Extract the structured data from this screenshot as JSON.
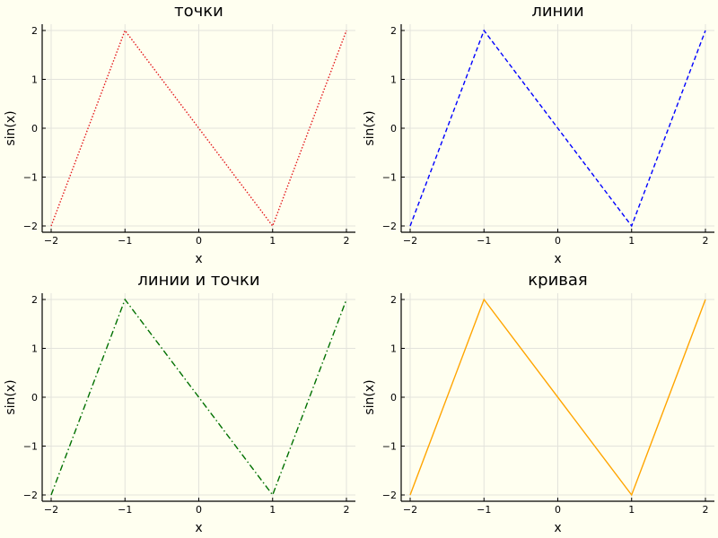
{
  "chart_data": [
    {
      "type": "line",
      "title": "точки",
      "xlabel": "x",
      "ylabel": "sin(x)",
      "xlim": [
        -2,
        2
      ],
      "ylim": [
        -2,
        2
      ],
      "xticks": [
        -2,
        -1,
        0,
        1,
        2
      ],
      "yticks": [
        -2,
        -1,
        0,
        1,
        2
      ],
      "xtick_labels": [
        "−2",
        "−1",
        "0",
        "1",
        "2"
      ],
      "ytick_labels": [
        "−2",
        "−1",
        "0",
        "1",
        "2"
      ],
      "grid": true,
      "series": [
        {
          "x": [
            -2,
            -1,
            1,
            2
          ],
          "y": [
            -2,
            2,
            -2,
            2
          ],
          "color": "#e41a1c",
          "style": "dotted"
        }
      ]
    },
    {
      "type": "line",
      "title": "линии",
      "xlabel": "x",
      "ylabel": "sin(x)",
      "xlim": [
        -2,
        2
      ],
      "ylim": [
        -2,
        2
      ],
      "xticks": [
        -2,
        -1,
        0,
        1,
        2
      ],
      "yticks": [
        -2,
        -1,
        0,
        1,
        2
      ],
      "xtick_labels": [
        "−2",
        "−1",
        "0",
        "1",
        "2"
      ],
      "ytick_labels": [
        "−2",
        "−1",
        "0",
        "1",
        "2"
      ],
      "grid": true,
      "series": [
        {
          "x": [
            -2,
            -1,
            1,
            2
          ],
          "y": [
            -2,
            2,
            -2,
            2
          ],
          "color": "#0000ff",
          "style": "dashed"
        }
      ]
    },
    {
      "type": "line",
      "title": "линии и точки",
      "xlabel": "x",
      "ylabel": "sin(x)",
      "xlim": [
        -2,
        2
      ],
      "ylim": [
        -2,
        2
      ],
      "xticks": [
        -2,
        -1,
        0,
        1,
        2
      ],
      "yticks": [
        -2,
        -1,
        0,
        1,
        2
      ],
      "xtick_labels": [
        "−2",
        "−1",
        "0",
        "1",
        "2"
      ],
      "ytick_labels": [
        "−2",
        "−1",
        "0",
        "1",
        "2"
      ],
      "grid": true,
      "series": [
        {
          "x": [
            -2,
            -1,
            1,
            2
          ],
          "y": [
            -2,
            2,
            -2,
            2
          ],
          "color": "#007000",
          "style": "dashdot"
        }
      ]
    },
    {
      "type": "line",
      "title": "кривая",
      "xlabel": "x",
      "ylabel": "sin(x)",
      "xlim": [
        -2,
        2
      ],
      "ylim": [
        -2,
        2
      ],
      "xticks": [
        -2,
        -1,
        0,
        1,
        2
      ],
      "yticks": [
        -2,
        -1,
        0,
        1,
        2
      ],
      "xtick_labels": [
        "−2",
        "−1",
        "0",
        "1",
        "2"
      ],
      "ytick_labels": [
        "−2",
        "−1",
        "0",
        "1",
        "2"
      ],
      "grid": true,
      "series": [
        {
          "x": [
            -2,
            -1,
            1,
            2
          ],
          "y": [
            -2,
            2,
            -2,
            2
          ],
          "color": "#ffa500",
          "style": "solid"
        }
      ]
    }
  ]
}
